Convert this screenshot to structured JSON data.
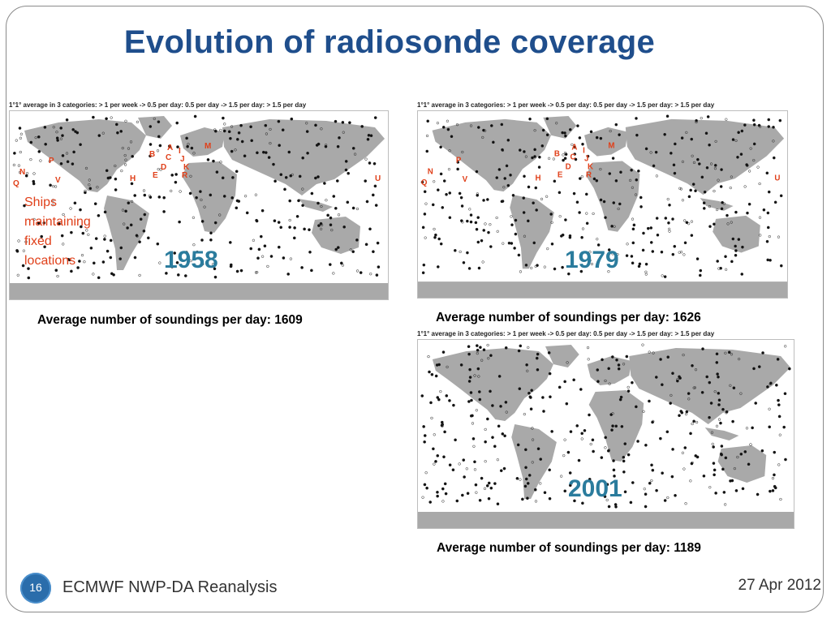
{
  "slide": {
    "title": "Evolution of radiosonde coverage",
    "slide_number": "16",
    "footer_left": "ECMWF NWP-DA Reanalysis",
    "footer_right": "27 Apr 2012"
  },
  "maps": [
    {
      "id": "map-1958",
      "header": "1°1° average in 3 categories: > 1 per week -> 0.5 per day:  0.5 per day -> 1.5 per day:  > 1.5 per day",
      "year": "1958",
      "caption": "Average number of soundings per day: 1609",
      "ship_markers": [
        "B",
        "A",
        "C",
        "D",
        "E",
        "H",
        "I",
        "J",
        "K",
        "M",
        "P",
        "N",
        "V",
        "Q",
        "U",
        "R"
      ]
    },
    {
      "id": "map-1979",
      "header": "1°1° average in 3 categories: > 1 per week -> 0.5 per day:  0.5 per day -> 1.5 per day:  > 1.5 per day",
      "year": "1979",
      "caption": "Average number of soundings per day: 1626",
      "ship_markers": [
        "B",
        "A",
        "C",
        "D",
        "E",
        "H",
        "I",
        "J",
        "K",
        "M",
        "P",
        "N",
        "V",
        "Q",
        "U",
        "R"
      ]
    },
    {
      "id": "map-2001",
      "header": "1°1° average in 3 categories: > 1 per week -> 0.5 per day:  0.5 per day -> 1.5 per day:  > 1.5 per day",
      "year": "2001",
      "caption": "Average number of soundings per day: 1189",
      "ship_markers": []
    }
  ],
  "annotation": {
    "ships_line1": "Ships",
    "ships_line2": "maintaining",
    "ships_line3": "fixed",
    "ships_line4": "locations"
  },
  "colors": {
    "title": "#1f4e8c",
    "year": "#2b7c9d",
    "ship_marker": "#e0401a",
    "land": "#a9a9a9",
    "slide_badge": "#2a6dab"
  }
}
